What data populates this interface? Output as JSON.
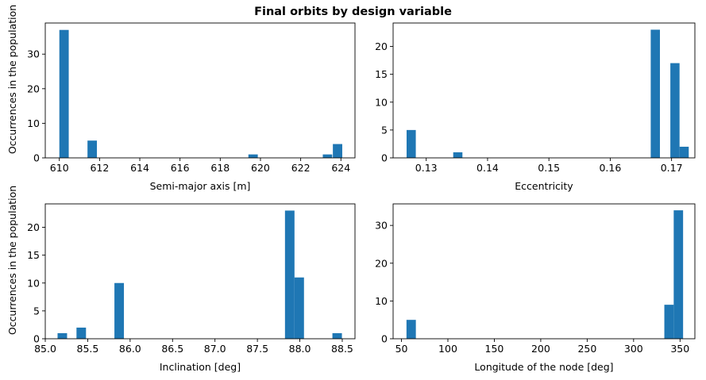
{
  "figure": {
    "title": "Final orbits by design variable"
  },
  "colors": {
    "bar": "#1f77b4",
    "axis": "#000000"
  },
  "chart_data": [
    {
      "type": "bar",
      "subtype": "histogram",
      "xlabel": "Semi-major axis [m]",
      "ylabel": "Occurrences in the population",
      "xlim": [
        609.3,
        624.7
      ],
      "ylim": [
        0,
        39
      ],
      "xticks": [
        610,
        612,
        614,
        616,
        618,
        620,
        622,
        624
      ],
      "xtick_labels": [
        "610",
        "612",
        "614",
        "616",
        "618",
        "620",
        "622",
        "624"
      ],
      "yticks": [
        0,
        10,
        20,
        30
      ],
      "ytick_labels": [
        "0",
        "10",
        "20",
        "30"
      ],
      "bin_width": 0.467,
      "bars": [
        {
          "x": 610.0,
          "value": 37
        },
        {
          "x": 611.4,
          "value": 5
        },
        {
          "x": 619.4,
          "value": 1
        },
        {
          "x": 623.1,
          "value": 1
        },
        {
          "x": 623.6,
          "value": 4
        }
      ]
    },
    {
      "type": "bar",
      "subtype": "histogram",
      "xlabel": "Eccentricity",
      "ylabel": "",
      "xlim": [
        0.1246,
        0.1738
      ],
      "ylim": [
        0,
        24.2
      ],
      "xticks": [
        0.13,
        0.14,
        0.15,
        0.16,
        0.17
      ],
      "xtick_labels": [
        "0.13",
        "0.14",
        "0.15",
        "0.16",
        "0.17"
      ],
      "yticks": [
        0,
        5,
        10,
        15,
        20
      ],
      "ytick_labels": [
        "0",
        "5",
        "10",
        "15",
        "20"
      ],
      "bin_width": 0.0015,
      "bars": [
        {
          "x": 0.1268,
          "value": 5
        },
        {
          "x": 0.1344,
          "value": 1
        },
        {
          "x": 0.1666,
          "value": 23
        },
        {
          "x": 0.1698,
          "value": 17
        },
        {
          "x": 0.1713,
          "value": 2
        }
      ]
    },
    {
      "type": "bar",
      "subtype": "histogram",
      "xlabel": "Inclination [deg]",
      "ylabel": "Occurrences in the population",
      "xlim": [
        85.0,
        88.65
      ],
      "ylim": [
        0,
        24.2
      ],
      "xticks": [
        85.0,
        85.5,
        86.0,
        86.5,
        87.0,
        87.5,
        88.0,
        88.5
      ],
      "xtick_labels": [
        "85.0",
        "85.5",
        "86.0",
        "86.5",
        "87.0",
        "87.5",
        "88.0",
        "88.5"
      ],
      "yticks": [
        0,
        5,
        10,
        15,
        20
      ],
      "ytick_labels": [
        "0",
        "5",
        "10",
        "15",
        "20"
      ],
      "bin_width": 0.112,
      "bars": [
        {
          "x": 85.145,
          "value": 1
        },
        {
          "x": 85.368,
          "value": 2
        },
        {
          "x": 85.815,
          "value": 10
        },
        {
          "x": 87.825,
          "value": 23
        },
        {
          "x": 87.937,
          "value": 11
        },
        {
          "x": 88.384,
          "value": 1
        }
      ]
    },
    {
      "type": "bar",
      "subtype": "histogram",
      "xlabel": "Longitude of the node [deg]",
      "ylabel": "",
      "xlim": [
        41,
        366
      ],
      "ylim": [
        0,
        35.7
      ],
      "xticks": [
        50,
        100,
        150,
        200,
        250,
        300,
        350
      ],
      "xtick_labels": [
        "50",
        "100",
        "150",
        "200",
        "250",
        "300",
        "350"
      ],
      "yticks": [
        0,
        10,
        20,
        30
      ],
      "ytick_labels": [
        "0",
        "10",
        "20",
        "30"
      ],
      "bin_width": 10.1,
      "bars": [
        {
          "x": 55.4,
          "value": 5
        },
        {
          "x": 333.1,
          "value": 9
        },
        {
          "x": 343.2,
          "value": 34
        }
      ]
    }
  ]
}
